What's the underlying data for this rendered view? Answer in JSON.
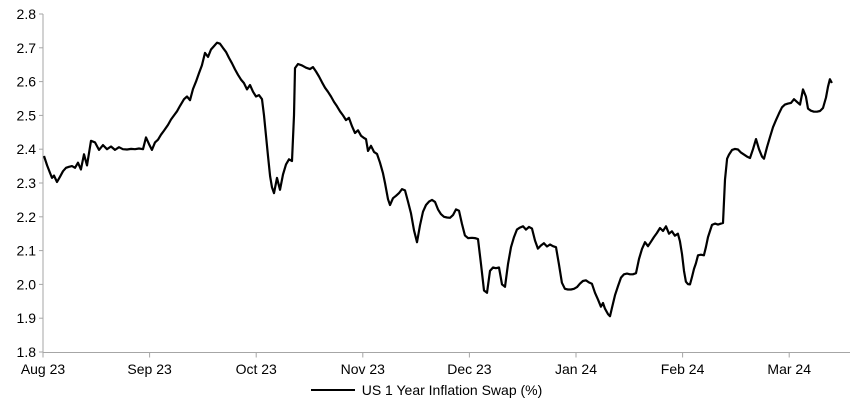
{
  "chart_data": {
    "type": "line",
    "title": "",
    "xlabel": "",
    "ylabel": "",
    "ylim": [
      1.8,
      2.8
    ],
    "xlim_months": [
      0,
      7.57
    ],
    "x_unit": "months after Aug 23 tick",
    "grid": false,
    "legend_position": "bottom-center",
    "background": "#ffffff",
    "axis_color": "#a6a6a6",
    "text_color": "#000000",
    "y_tick_labels": [
      "1.8",
      "1.9",
      "2.0",
      "2.1",
      "2.2",
      "2.3",
      "2.4",
      "2.5",
      "2.6",
      "2.7",
      "2.8"
    ],
    "x_tick_labels": [
      "Aug 23",
      "Sep 23",
      "Oct 23",
      "Nov 23",
      "Dec 23",
      "Jan 24",
      "Feb 24",
      "Mar 24"
    ],
    "series": [
      {
        "name": "US 1 Year Inflation Swap (%)",
        "color": "#000000",
        "points": [
          [
            0.009,
            2.38
          ],
          [
            0.038,
            2.352
          ],
          [
            0.066,
            2.33
          ],
          [
            0.084,
            2.315
          ],
          [
            0.103,
            2.322
          ],
          [
            0.131,
            2.303
          ],
          [
            0.159,
            2.318
          ],
          [
            0.188,
            2.335
          ],
          [
            0.216,
            2.345
          ],
          [
            0.244,
            2.348
          ],
          [
            0.272,
            2.35
          ],
          [
            0.3,
            2.345
          ],
          [
            0.328,
            2.36
          ],
          [
            0.356,
            2.34
          ],
          [
            0.385,
            2.385
          ],
          [
            0.413,
            2.352
          ],
          [
            0.45,
            2.425
          ],
          [
            0.488,
            2.42
          ],
          [
            0.525,
            2.398
          ],
          [
            0.563,
            2.412
          ],
          [
            0.6,
            2.4
          ],
          [
            0.638,
            2.408
          ],
          [
            0.675,
            2.398
          ],
          [
            0.713,
            2.406
          ],
          [
            0.75,
            2.4
          ],
          [
            0.788,
            2.399
          ],
          [
            0.826,
            2.401
          ],
          [
            0.863,
            2.4
          ],
          [
            0.901,
            2.402
          ],
          [
            0.938,
            2.4
          ],
          [
            0.966,
            2.435
          ],
          [
            0.994,
            2.415
          ],
          [
            1.022,
            2.398
          ],
          [
            1.051,
            2.42
          ],
          [
            1.079,
            2.428
          ],
          [
            1.107,
            2.443
          ],
          [
            1.135,
            2.455
          ],
          [
            1.173,
            2.472
          ],
          [
            1.201,
            2.488
          ],
          [
            1.229,
            2.5
          ],
          [
            1.257,
            2.512
          ],
          [
            1.285,
            2.528
          ],
          [
            1.323,
            2.548
          ],
          [
            1.351,
            2.556
          ],
          [
            1.379,
            2.545
          ],
          [
            1.407,
            2.578
          ],
          [
            1.435,
            2.6
          ],
          [
            1.463,
            2.625
          ],
          [
            1.491,
            2.648
          ],
          [
            1.52,
            2.685
          ],
          [
            1.548,
            2.673
          ],
          [
            1.576,
            2.695
          ],
          [
            1.604,
            2.705
          ],
          [
            1.632,
            2.715
          ],
          [
            1.66,
            2.712
          ],
          [
            1.688,
            2.7
          ],
          [
            1.717,
            2.688
          ],
          [
            1.745,
            2.67
          ],
          [
            1.773,
            2.654
          ],
          [
            1.801,
            2.636
          ],
          [
            1.829,
            2.62
          ],
          [
            1.857,
            2.606
          ],
          [
            1.885,
            2.596
          ],
          [
            1.914,
            2.577
          ],
          [
            1.942,
            2.59
          ],
          [
            1.97,
            2.57
          ],
          [
            1.998,
            2.556
          ],
          [
            2.026,
            2.56
          ],
          [
            2.054,
            2.548
          ],
          [
            2.073,
            2.5
          ],
          [
            2.092,
            2.44
          ],
          [
            2.111,
            2.38
          ],
          [
            2.13,
            2.32
          ],
          [
            2.148,
            2.287
          ],
          [
            2.167,
            2.27
          ],
          [
            2.195,
            2.315
          ],
          [
            2.223,
            2.28
          ],
          [
            2.251,
            2.325
          ],
          [
            2.28,
            2.355
          ],
          [
            2.308,
            2.37
          ],
          [
            2.336,
            2.365
          ],
          [
            2.355,
            2.5
          ],
          [
            2.364,
            2.64
          ],
          [
            2.392,
            2.652
          ],
          [
            2.43,
            2.648
          ],
          [
            2.467,
            2.641
          ],
          [
            2.505,
            2.637
          ],
          [
            2.533,
            2.643
          ],
          [
            2.561,
            2.63
          ],
          [
            2.589,
            2.615
          ],
          [
            2.617,
            2.598
          ],
          [
            2.645,
            2.582
          ],
          [
            2.673,
            2.57
          ],
          [
            2.702,
            2.556
          ],
          [
            2.73,
            2.54
          ],
          [
            2.758,
            2.527
          ],
          [
            2.786,
            2.512
          ],
          [
            2.814,
            2.5
          ],
          [
            2.842,
            2.486
          ],
          [
            2.87,
            2.493
          ],
          [
            2.899,
            2.468
          ],
          [
            2.927,
            2.448
          ],
          [
            2.955,
            2.456
          ],
          [
            2.983,
            2.44
          ],
          [
            3.011,
            2.433
          ],
          [
            3.03,
            2.43
          ],
          [
            3.049,
            2.395
          ],
          [
            3.077,
            2.41
          ],
          [
            3.105,
            2.392
          ],
          [
            3.133,
            2.386
          ],
          [
            3.161,
            2.36
          ],
          [
            3.189,
            2.33
          ],
          [
            3.208,
            2.3
          ],
          [
            3.236,
            2.252
          ],
          [
            3.255,
            2.235
          ],
          [
            3.283,
            2.255
          ],
          [
            3.311,
            2.262
          ],
          [
            3.34,
            2.27
          ],
          [
            3.368,
            2.282
          ],
          [
            3.396,
            2.278
          ],
          [
            3.424,
            2.245
          ],
          [
            3.452,
            2.21
          ],
          [
            3.48,
            2.16
          ],
          [
            3.508,
            2.125
          ],
          [
            3.537,
            2.175
          ],
          [
            3.565,
            2.215
          ],
          [
            3.593,
            2.235
          ],
          [
            3.621,
            2.245
          ],
          [
            3.649,
            2.25
          ],
          [
            3.677,
            2.244
          ],
          [
            3.705,
            2.222
          ],
          [
            3.733,
            2.208
          ],
          [
            3.762,
            2.2
          ],
          [
            3.79,
            2.198
          ],
          [
            3.818,
            2.197
          ],
          [
            3.846,
            2.205
          ],
          [
            3.874,
            2.222
          ],
          [
            3.902,
            2.218
          ],
          [
            3.93,
            2.18
          ],
          [
            3.958,
            2.145
          ],
          [
            3.987,
            2.137
          ],
          [
            4.024,
            2.138
          ],
          [
            4.052,
            2.137
          ],
          [
            4.081,
            2.134
          ],
          [
            4.109,
            2.06
          ],
          [
            4.137,
            1.982
          ],
          [
            4.165,
            1.975
          ],
          [
            4.193,
            2.04
          ],
          [
            4.221,
            2.05
          ],
          [
            4.249,
            2.048
          ],
          [
            4.278,
            2.05
          ],
          [
            4.306,
            2.0
          ],
          [
            4.334,
            1.993
          ],
          [
            4.362,
            2.06
          ],
          [
            4.39,
            2.11
          ],
          [
            4.418,
            2.14
          ],
          [
            4.446,
            2.162
          ],
          [
            4.474,
            2.168
          ],
          [
            4.503,
            2.172
          ],
          [
            4.531,
            2.162
          ],
          [
            4.559,
            2.17
          ],
          [
            4.587,
            2.165
          ],
          [
            4.615,
            2.13
          ],
          [
            4.643,
            2.106
          ],
          [
            4.671,
            2.115
          ],
          [
            4.699,
            2.122
          ],
          [
            4.728,
            2.112
          ],
          [
            4.756,
            2.118
          ],
          [
            4.784,
            2.113
          ],
          [
            4.812,
            2.11
          ],
          [
            4.84,
            2.06
          ],
          [
            4.868,
            2.005
          ],
          [
            4.896,
            1.987
          ],
          [
            4.924,
            1.985
          ],
          [
            4.953,
            1.985
          ],
          [
            4.981,
            1.987
          ],
          [
            5.009,
            1.992
          ],
          [
            5.037,
            2.002
          ],
          [
            5.065,
            2.01
          ],
          [
            5.093,
            2.012
          ],
          [
            5.121,
            2.006
          ],
          [
            5.149,
            2.002
          ],
          [
            5.178,
            1.975
          ],
          [
            5.206,
            1.955
          ],
          [
            5.234,
            1.934
          ],
          [
            5.253,
            1.945
          ],
          [
            5.272,
            1.928
          ],
          [
            5.3,
            1.912
          ],
          [
            5.319,
            1.906
          ],
          [
            5.337,
            1.93
          ],
          [
            5.366,
            1.968
          ],
          [
            5.394,
            1.995
          ],
          [
            5.422,
            2.02
          ],
          [
            5.45,
            2.03
          ],
          [
            5.478,
            2.032
          ],
          [
            5.506,
            2.03
          ],
          [
            5.534,
            2.03
          ],
          [
            5.563,
            2.033
          ],
          [
            5.591,
            2.075
          ],
          [
            5.619,
            2.105
          ],
          [
            5.647,
            2.125
          ],
          [
            5.675,
            2.113
          ],
          [
            5.703,
            2.126
          ],
          [
            5.731,
            2.14
          ],
          [
            5.759,
            2.152
          ],
          [
            5.788,
            2.167
          ],
          [
            5.816,
            2.158
          ],
          [
            5.844,
            2.172
          ],
          [
            5.872,
            2.15
          ],
          [
            5.9,
            2.157
          ],
          [
            5.928,
            2.144
          ],
          [
            5.956,
            2.15
          ],
          [
            5.975,
            2.128
          ],
          [
            5.994,
            2.09
          ],
          [
            6.013,
            2.04
          ],
          [
            6.031,
            2.008
          ],
          [
            6.05,
            2.001
          ],
          [
            6.069,
            2.0
          ],
          [
            6.088,
            2.022
          ],
          [
            6.107,
            2.046
          ],
          [
            6.125,
            2.062
          ],
          [
            6.144,
            2.086
          ],
          [
            6.172,
            2.088
          ],
          [
            6.2,
            2.086
          ],
          [
            6.219,
            2.11
          ],
          [
            6.238,
            2.14
          ],
          [
            6.257,
            2.158
          ],
          [
            6.276,
            2.176
          ],
          [
            6.304,
            2.18
          ],
          [
            6.332,
            2.177
          ],
          [
            6.36,
            2.18
          ],
          [
            6.379,
            2.182
          ],
          [
            6.398,
            2.31
          ],
          [
            6.417,
            2.372
          ],
          [
            6.435,
            2.384
          ],
          [
            6.464,
            2.398
          ],
          [
            6.492,
            2.401
          ],
          [
            6.52,
            2.399
          ],
          [
            6.548,
            2.39
          ],
          [
            6.576,
            2.384
          ],
          [
            6.604,
            2.378
          ],
          [
            6.632,
            2.374
          ],
          [
            6.66,
            2.4
          ],
          [
            6.689,
            2.43
          ],
          [
            6.717,
            2.4
          ],
          [
            6.745,
            2.378
          ],
          [
            6.764,
            2.372
          ],
          [
            6.792,
            2.406
          ],
          [
            6.82,
            2.436
          ],
          [
            6.848,
            2.465
          ],
          [
            6.876,
            2.486
          ],
          [
            6.904,
            2.506
          ],
          [
            6.932,
            2.524
          ],
          [
            6.96,
            2.532
          ],
          [
            6.989,
            2.535
          ],
          [
            7.017,
            2.537
          ],
          [
            7.045,
            2.548
          ],
          [
            7.073,
            2.54
          ],
          [
            7.101,
            2.532
          ],
          [
            7.129,
            2.577
          ],
          [
            7.157,
            2.556
          ],
          [
            7.176,
            2.52
          ],
          [
            7.204,
            2.514
          ],
          [
            7.232,
            2.511
          ],
          [
            7.261,
            2.511
          ],
          [
            7.289,
            2.513
          ],
          [
            7.317,
            2.522
          ],
          [
            7.345,
            2.553
          ],
          [
            7.364,
            2.585
          ],
          [
            7.382,
            2.607
          ],
          [
            7.401,
            2.596
          ]
        ]
      }
    ]
  },
  "legend": {
    "label": "US 1 Year Inflation Swap (%)"
  }
}
